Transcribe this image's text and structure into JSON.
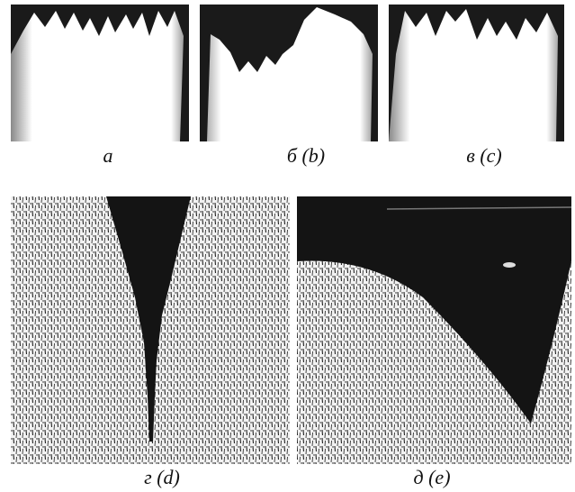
{
  "figure": {
    "panels": [
      {
        "label": "а"
      },
      {
        "label": "б (b)"
      },
      {
        "label": "в (c)"
      },
      {
        "label": "г (d)"
      },
      {
        "label": "д (e)"
      }
    ]
  }
}
